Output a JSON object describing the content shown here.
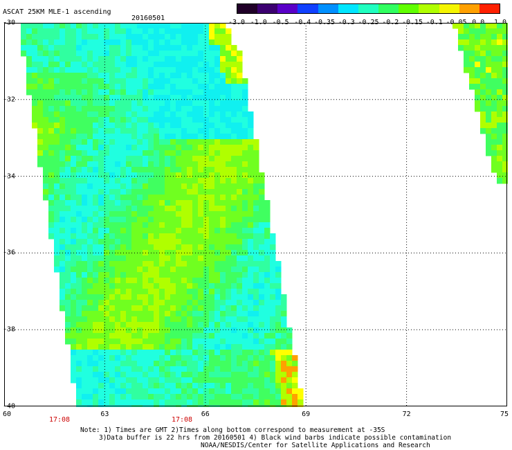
{
  "header": {
    "title": "ASCAT 25KM MLE-1 ascending",
    "date": "20160501"
  },
  "colorbar": {
    "labels": [
      "-3.0",
      "-1.0",
      "-0.5",
      "-0.4",
      "-0.35",
      "-0.3",
      "-0.25",
      "-0.2",
      "-0.15",
      "-0.1",
      "-0.05",
      "0.0",
      "1.0"
    ],
    "colors": [
      "#200028",
      "#3c0070",
      "#5a00c8",
      "#1040ff",
      "#0090ff",
      "#00e6ff",
      "#20ffc0",
      "#30ff60",
      "#60ff00",
      "#b0ff00",
      "#f5f500",
      "#ffa000",
      "#ff2000"
    ]
  },
  "map": {
    "lat_labels": [
      "-30",
      "-32",
      "-34",
      "-36",
      "-38",
      "-40"
    ],
    "lon_labels": [
      "60",
      "63",
      "66",
      "69",
      "72",
      "75"
    ],
    "time_labels": [
      "17:08",
      "17:08"
    ],
    "colors": {
      "cyan": "#10f0f0",
      "aqua": "#20ffe0",
      "teal_green": "#30ffa0",
      "green": "#40ff60",
      "bright_green": "#70ff20",
      "yellow_green": "#b0ff00",
      "yellow": "#ffff00",
      "orange": "#ffa000",
      "blue": "#1090ff"
    }
  },
  "notes": {
    "line1": "Note: 1) Times are GMT 2)Times along bottom correspond to measurement at -35S",
    "line2": "3)Data buffer is 22 hrs from 20160501 4) Black wind barbs indicate possible contamination",
    "line3": "NOAA/NESDIS/Center for Satellite Applications and Research"
  }
}
